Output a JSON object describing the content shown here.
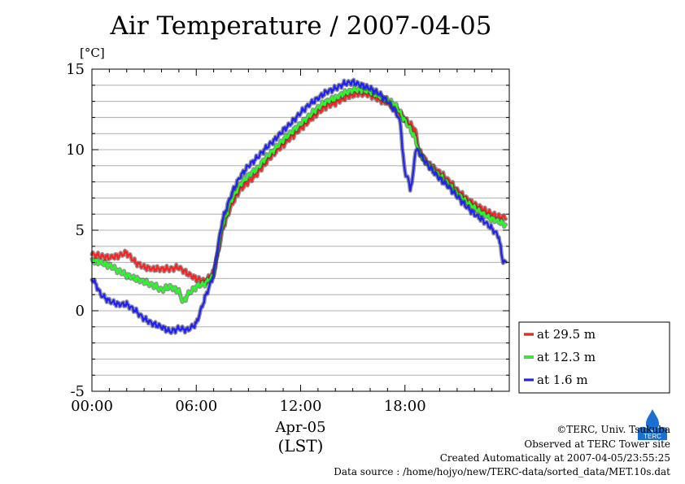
{
  "chart_data": {
    "type": "line",
    "title": "Air Temperature / 2007-04-05",
    "ylabel": "[°C]",
    "xlabel_date": "Apr-05",
    "xlabel_zone": "(LST)",
    "xlim_hours": [
      0,
      24
    ],
    "ylim": [
      -5,
      15
    ],
    "y_ticks": [
      "15",
      "10",
      "5",
      "0",
      "-5"
    ],
    "x_ticks": [
      "00:00",
      "06:00",
      "12:00",
      "18:00"
    ],
    "grid": true,
    "legend_position": "right-bottom",
    "series": [
      {
        "name": "at 29.5 m",
        "color": "#ff2020",
        "points": [
          [
            0,
            3.5
          ],
          [
            0.5,
            3.4
          ],
          [
            1,
            3.3
          ],
          [
            1.5,
            3.4
          ],
          [
            2,
            3.6
          ],
          [
            2.5,
            3.0
          ],
          [
            3,
            2.7
          ],
          [
            3.5,
            2.6
          ],
          [
            4,
            2.6
          ],
          [
            4.5,
            2.6
          ],
          [
            5,
            2.7
          ],
          [
            5.5,
            2.3
          ],
          [
            6,
            2.0
          ],
          [
            6.5,
            1.8
          ],
          [
            7,
            2.4
          ],
          [
            7.25,
            3.5
          ],
          [
            7.5,
            5.0
          ],
          [
            8,
            6.5
          ],
          [
            8.5,
            7.5
          ],
          [
            9,
            8.0
          ],
          [
            9.5,
            8.5
          ],
          [
            10,
            9.2
          ],
          [
            10.5,
            9.8
          ],
          [
            11,
            10.3
          ],
          [
            11.5,
            10.8
          ],
          [
            12,
            11.3
          ],
          [
            12.5,
            11.8
          ],
          [
            13,
            12.3
          ],
          [
            13.5,
            12.7
          ],
          [
            14,
            12.9
          ],
          [
            14.5,
            13.2
          ],
          [
            15,
            13.4
          ],
          [
            15.5,
            13.5
          ],
          [
            16,
            13.4
          ],
          [
            16.5,
            13.1
          ],
          [
            17,
            12.9
          ],
          [
            17.5,
            12.5
          ],
          [
            18,
            11.9
          ],
          [
            18.3,
            11.6
          ],
          [
            18.6,
            11.2
          ],
          [
            18.8,
            10.0
          ],
          [
            19,
            9.6
          ],
          [
            19.5,
            9.0
          ],
          [
            20,
            8.6
          ],
          [
            20.5,
            8.1
          ],
          [
            21,
            7.5
          ],
          [
            21.5,
            7.0
          ],
          [
            22,
            6.6
          ],
          [
            22.5,
            6.3
          ],
          [
            23,
            6.0
          ],
          [
            23.5,
            5.8
          ],
          [
            23.83,
            5.8
          ]
        ]
      },
      {
        "name": "at 12.3 m",
        "color": "#20ff20",
        "points": [
          [
            0,
            3.1
          ],
          [
            0.5,
            3.0
          ],
          [
            1,
            2.8
          ],
          [
            1.5,
            2.5
          ],
          [
            2,
            2.2
          ],
          [
            2.5,
            2.0
          ],
          [
            3,
            1.8
          ],
          [
            3.5,
            1.6
          ],
          [
            4,
            1.3
          ],
          [
            4.5,
            1.5
          ],
          [
            5,
            1.2
          ],
          [
            5.25,
            0.5
          ],
          [
            5.5,
            1.0
          ],
          [
            6,
            1.5
          ],
          [
            6.5,
            1.7
          ],
          [
            7,
            2.2
          ],
          [
            7.25,
            3.8
          ],
          [
            7.5,
            5.2
          ],
          [
            8,
            6.8
          ],
          [
            8.5,
            7.8
          ],
          [
            9,
            8.4
          ],
          [
            9.5,
            8.8
          ],
          [
            10,
            9.5
          ],
          [
            10.5,
            10.0
          ],
          [
            11,
            10.6
          ],
          [
            11.5,
            11.1
          ],
          [
            12,
            11.6
          ],
          [
            12.5,
            12.1
          ],
          [
            13,
            12.6
          ],
          [
            13.5,
            13.0
          ],
          [
            14,
            13.2
          ],
          [
            14.5,
            13.5
          ],
          [
            15,
            13.7
          ],
          [
            15.5,
            13.7
          ],
          [
            16,
            13.6
          ],
          [
            16.5,
            13.3
          ],
          [
            17,
            13.1
          ],
          [
            17.5,
            12.7
          ],
          [
            18,
            11.8
          ],
          [
            18.3,
            11.3
          ],
          [
            18.6,
            10.7
          ],
          [
            18.8,
            9.9
          ],
          [
            19,
            9.5
          ],
          [
            19.5,
            8.9
          ],
          [
            20,
            8.4
          ],
          [
            20.5,
            7.9
          ],
          [
            21,
            7.3
          ],
          [
            21.5,
            6.8
          ],
          [
            22,
            6.4
          ],
          [
            22.5,
            6.0
          ],
          [
            23,
            5.7
          ],
          [
            23.5,
            5.5
          ],
          [
            23.83,
            5.3
          ]
        ]
      },
      {
        "name": "at 1.6 m",
        "color": "#2020ff",
        "points": [
          [
            0,
            2.0
          ],
          [
            0.25,
            1.6
          ],
          [
            0.5,
            1.0
          ],
          [
            1,
            0.6
          ],
          [
            1.5,
            0.4
          ],
          [
            2,
            0.4
          ],
          [
            2.5,
            0.0
          ],
          [
            3,
            -0.5
          ],
          [
            3.5,
            -0.8
          ],
          [
            4,
            -1.0
          ],
          [
            4.5,
            -1.3
          ],
          [
            5,
            -1.1
          ],
          [
            5.5,
            -1.2
          ],
          [
            6,
            -0.8
          ],
          [
            6.5,
            0.8
          ],
          [
            7,
            2.2
          ],
          [
            7.25,
            4.0
          ],
          [
            7.5,
            5.6
          ],
          [
            8,
            7.2
          ],
          [
            8.5,
            8.3
          ],
          [
            9,
            9.0
          ],
          [
            9.5,
            9.5
          ],
          [
            10,
            10.1
          ],
          [
            10.5,
            10.6
          ],
          [
            11,
            11.2
          ],
          [
            11.5,
            11.7
          ],
          [
            12,
            12.3
          ],
          [
            12.5,
            12.8
          ],
          [
            13,
            13.2
          ],
          [
            13.5,
            13.6
          ],
          [
            14,
            13.8
          ],
          [
            14.5,
            14.1
          ],
          [
            15,
            14.2
          ],
          [
            15.5,
            14.0
          ],
          [
            16,
            13.8
          ],
          [
            16.5,
            13.5
          ],
          [
            17,
            13.0
          ],
          [
            17.5,
            12.3
          ],
          [
            17.75,
            11.6
          ],
          [
            17.9,
            9.5
          ],
          [
            18,
            8.6
          ],
          [
            18.15,
            8.3
          ],
          [
            18.3,
            7.6
          ],
          [
            18.45,
            8.2
          ],
          [
            18.6,
            10.0
          ],
          [
            18.8,
            9.9
          ],
          [
            19,
            9.5
          ],
          [
            19.5,
            8.8
          ],
          [
            20,
            8.2
          ],
          [
            20.5,
            7.7
          ],
          [
            21,
            7.1
          ],
          [
            21.5,
            6.5
          ],
          [
            22,
            6.0
          ],
          [
            22.5,
            5.6
          ],
          [
            23,
            5.1
          ],
          [
            23.4,
            4.6
          ],
          [
            23.6,
            3.2
          ],
          [
            23.83,
            2.9
          ]
        ]
      }
    ]
  },
  "footer": {
    "copyright": "©TERC, Univ. Tsukuba",
    "site": "Observed at TERC Tower site",
    "created": "Created Automatically at 2007-04-05/23:55:25",
    "source": "Data source : /home/hojyo/new/TERC-data/sorted_data/MET.10s.dat"
  },
  "logo": {
    "text": "TERC",
    "color": "#1a6fd0"
  }
}
